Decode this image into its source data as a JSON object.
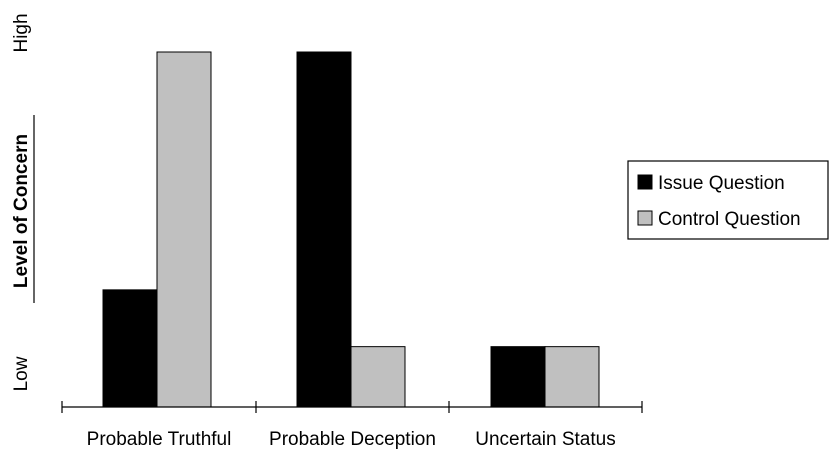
{
  "chart_data": {
    "type": "bar",
    "title": "",
    "xlabel": "",
    "ylabel": "Level of Concern",
    "y_high_label": "High",
    "y_low_label": "Low",
    "categories": [
      "Probable Truthful",
      "Probable Deception",
      "Uncertain Status"
    ],
    "series": [
      {
        "name": "Issue Question",
        "values": [
          0.33,
          1.0,
          0.17
        ]
      },
      {
        "name": "Control Question",
        "values": [
          1.0,
          0.17,
          0.17
        ]
      }
    ],
    "ylim": [
      0,
      1
    ],
    "grid": false,
    "legend_position": "right",
    "colors": {
      "Issue Question": "#000000",
      "Control Question": "#c0c0c0",
      "outline": "#000000"
    }
  }
}
